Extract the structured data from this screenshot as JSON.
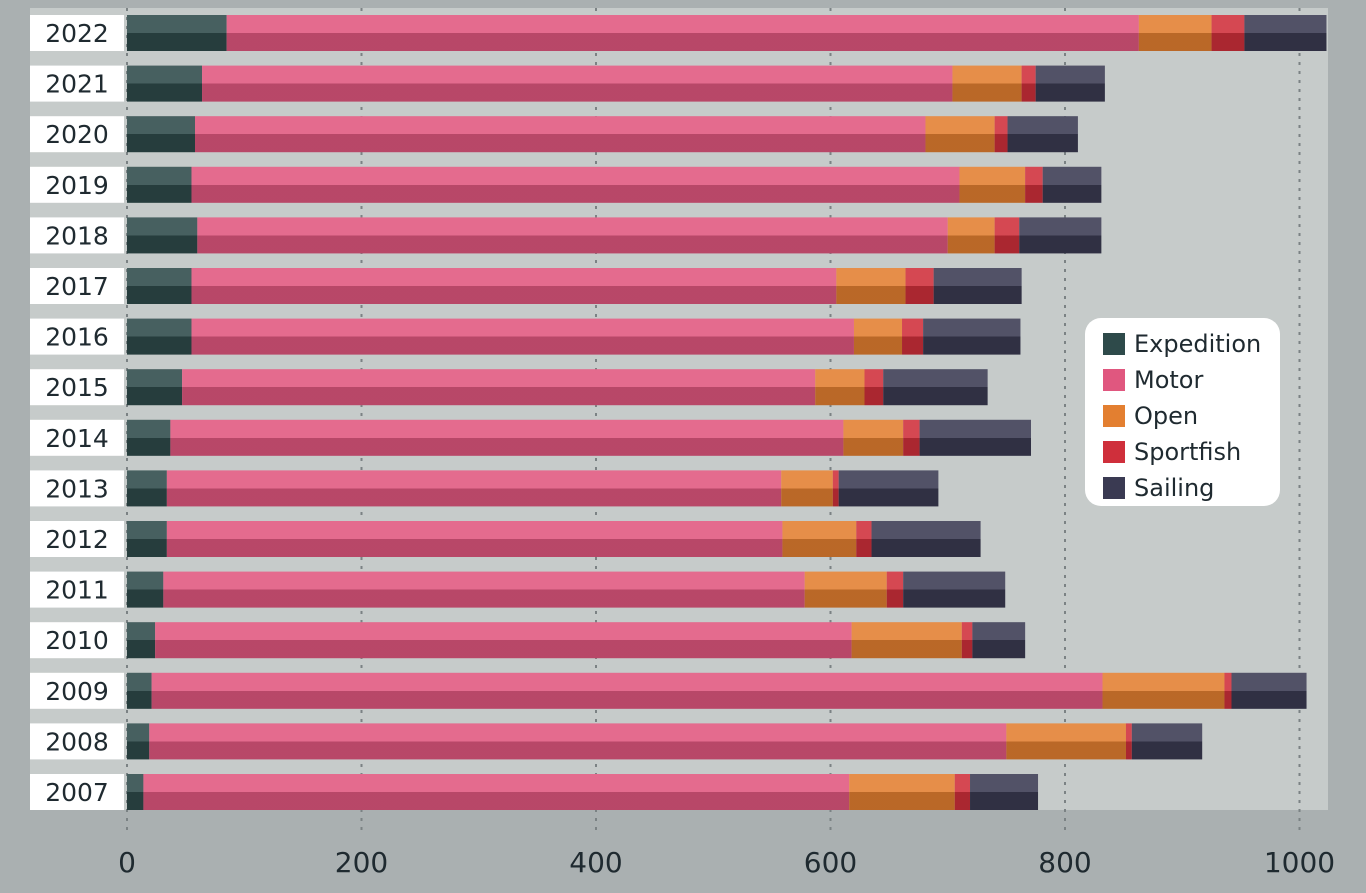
{
  "chart_data": {
    "type": "bar",
    "orientation": "horizontal",
    "stacked": true,
    "title": "",
    "xlabel": "",
    "ylabel": "",
    "xlim": [
      0,
      1025
    ],
    "xticks": [
      0,
      200,
      400,
      600,
      800,
      1000
    ],
    "grid": true,
    "legend_position": "right",
    "categories": [
      "2022",
      "2021",
      "2020",
      "2019",
      "2018",
      "2017",
      "2016",
      "2015",
      "2014",
      "2013",
      "2012",
      "2011",
      "2010",
      "2009",
      "2008",
      "2007"
    ],
    "series": [
      {
        "name": "Expedition",
        "color": "#2e4a4a",
        "values": [
          85,
          64,
          58,
          55,
          60,
          55,
          55,
          47,
          37,
          34,
          34,
          31,
          24,
          21,
          19,
          14
        ]
      },
      {
        "name": "Motor",
        "color": "#e0577f",
        "values": [
          778,
          640,
          623,
          655,
          640,
          550,
          565,
          540,
          574,
          524,
          525,
          547,
          594,
          811,
          731,
          602
        ]
      },
      {
        "name": "Open",
        "color": "#e37f30",
        "values": [
          62,
          59,
          59,
          56,
          40,
          59,
          41,
          42,
          51,
          44,
          63,
          70,
          94,
          104,
          102,
          90
        ]
      },
      {
        "name": "Sportfish",
        "color": "#cf2f3b",
        "values": [
          28,
          12,
          11,
          15,
          21,
          24,
          18,
          16,
          14,
          5,
          13,
          14,
          9,
          6,
          5,
          13
        ]
      },
      {
        "name": "Sailing",
        "color": "#3a3a52",
        "values": [
          70,
          59,
          60,
          50,
          70,
          75,
          83,
          89,
          95,
          85,
          93,
          87,
          45,
          64,
          60,
          58
        ]
      }
    ]
  }
}
